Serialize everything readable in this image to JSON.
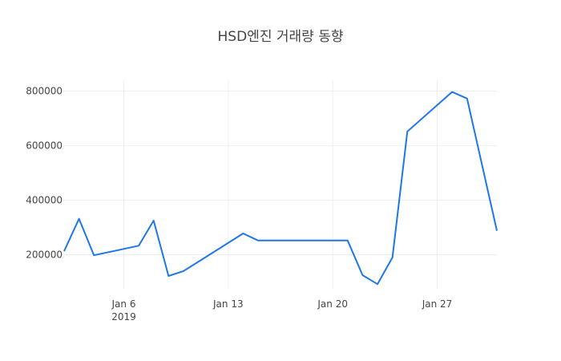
{
  "chart_data": {
    "type": "line",
    "title": "HSD엔진 거래량 동향",
    "xlabel": "",
    "ylabel": "",
    "x_ticks": [
      {
        "date": "2019-01-06",
        "label": "Jan 6",
        "sublabel": "2019"
      },
      {
        "date": "2019-01-13",
        "label": "Jan 13",
        "sublabel": ""
      },
      {
        "date": "2019-01-20",
        "label": "Jan 20",
        "sublabel": ""
      },
      {
        "date": "2019-01-27",
        "label": "Jan 27",
        "sublabel": ""
      }
    ],
    "y_ticks": [
      200000,
      400000,
      600000,
      800000
    ],
    "y_tick_labels": [
      "200000",
      "400000",
      "600000",
      "800000"
    ],
    "xlim": [
      "2019-01-02",
      "2019-01-31"
    ],
    "ylim": [
      75000,
      840000
    ],
    "grid": true,
    "colors": {
      "line": "#1f77e4",
      "grid": "#eeeeee",
      "text": "#444444"
    },
    "series": [
      {
        "x": [
          "2019-01-02",
          "2019-01-03",
          "2019-01-04",
          "2019-01-07",
          "2019-01-08",
          "2019-01-09",
          "2019-01-10",
          "2019-01-14",
          "2019-01-15",
          "2019-01-21",
          "2019-01-22",
          "2019-01-23",
          "2019-01-24",
          "2019-01-25",
          "2019-01-28",
          "2019-01-29",
          "2019-01-31"
        ],
        "y": [
          213000,
          332000,
          198000,
          233000,
          325000,
          122000,
          140000,
          278000,
          252000,
          252000,
          125000,
          92000,
          190000,
          652000,
          797000,
          773000,
          288000
        ]
      }
    ]
  }
}
